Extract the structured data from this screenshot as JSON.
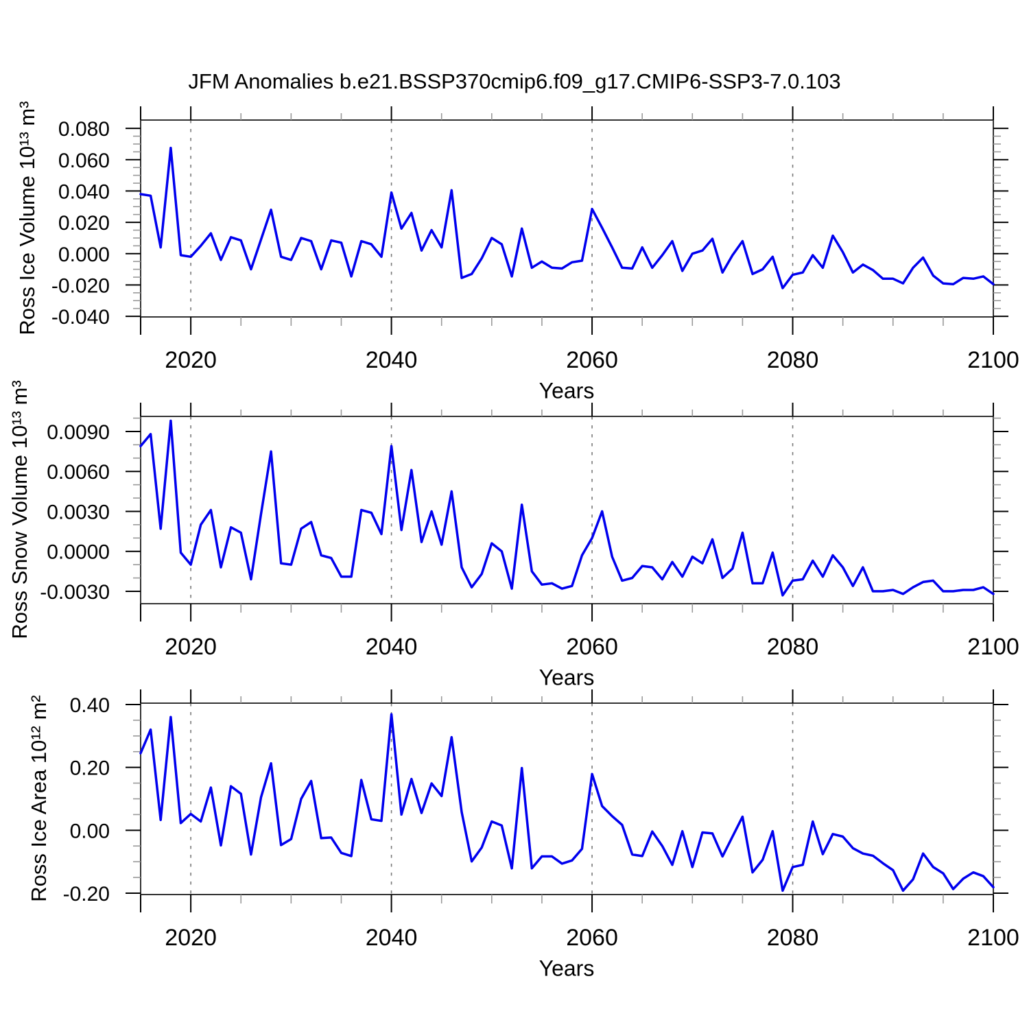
{
  "title": "JFM Anomalies b.e21.BSSP370cmip6.f09_g17.CMIP6-SSP3-7.0.103",
  "colors": {
    "line": "#0000ee",
    "frame": "#333333",
    "major_tick": "#000000",
    "minor_tick": "#999999",
    "gridline": "#777777",
    "text": "#000000",
    "background": "#ffffff"
  },
  "x_axis": {
    "label": "Years",
    "min": 2015,
    "max": 2100,
    "major_ticks": [
      2015,
      2020,
      2040,
      2060,
      2080,
      2100
    ],
    "major_tick_labels": [
      "",
      "2020",
      "2040",
      "2060",
      "2080",
      "2100"
    ],
    "minor_step": 5,
    "gridlines": [
      2020,
      2040,
      2060,
      2080,
      2100
    ]
  },
  "chart_data": [
    {
      "type": "line",
      "ylabel": "Ross Ice Volume 10¹³ m³",
      "ylim": [
        -0.0404,
        0.0853
      ],
      "ytick_values": [
        0.08,
        0.06,
        0.04,
        0.02,
        0.0,
        -0.02,
        -0.04
      ],
      "ytick_labels": [
        "0.080",
        "0.060",
        "0.040",
        "0.020",
        "0.000",
        "-0.020",
        "-0.040"
      ],
      "y_major_step": 0.02,
      "y_minor_step": 0.005,
      "x_start": 2015,
      "x_step": 1,
      "values": [
        0.038,
        0.037,
        0.004,
        0.0675,
        -0.001,
        -0.002,
        0.005,
        0.013,
        -0.004,
        0.0105,
        0.0085,
        -0.01,
        0.009,
        0.028,
        -0.002,
        -0.004,
        0.01,
        0.008,
        -0.01,
        0.0085,
        0.007,
        -0.0145,
        0.008,
        0.006,
        -0.002,
        0.039,
        0.016,
        0.026,
        0.002,
        0.015,
        0.004,
        0.0405,
        -0.0155,
        -0.013,
        -0.003,
        0.01,
        0.006,
        -0.0145,
        0.016,
        -0.009,
        -0.005,
        -0.009,
        -0.0095,
        -0.0055,
        -0.0045,
        0.0285,
        0.0165,
        0.004,
        -0.009,
        -0.0095,
        0.004,
        -0.009,
        -0.001,
        0.008,
        -0.011,
        0.0,
        0.002,
        0.0095,
        -0.012,
        -0.001,
        0.008,
        -0.013,
        -0.01,
        -0.002,
        -0.022,
        -0.0135,
        -0.012,
        -0.001,
        -0.009,
        0.0115,
        0.001,
        -0.012,
        -0.007,
        -0.0105,
        -0.016,
        -0.016,
        -0.019,
        -0.009,
        -0.0025,
        -0.014,
        -0.019,
        -0.0195,
        -0.0155,
        -0.016,
        -0.0145,
        -0.0195
      ]
    },
    {
      "type": "line",
      "ylabel": "Ross Snow Volume 10¹³ m³",
      "ylim": [
        -0.00393,
        0.01013
      ],
      "ytick_values": [
        0.009,
        0.006,
        0.003,
        0.0,
        -0.003
      ],
      "ytick_labels": [
        "0.0090",
        "0.0060",
        "0.0030",
        "0.0000",
        "-0.0030"
      ],
      "y_major_step": 0.003,
      "y_minor_step": 0.001,
      "x_start": 2015,
      "x_step": 1,
      "values": [
        0.0079,
        0.0088,
        0.0017,
        0.0098,
        -0.0001,
        -0.001,
        0.002,
        0.0031,
        -0.0012,
        0.0018,
        0.0014,
        -0.0021,
        0.0028,
        0.0075,
        -0.0009,
        -0.001,
        0.0017,
        0.0022,
        -0.0003,
        -0.0005,
        -0.0019,
        -0.0019,
        0.0031,
        0.0029,
        0.0013,
        0.0079,
        0.0016,
        0.0061,
        0.0007,
        0.003,
        0.0005,
        0.0045,
        -0.0012,
        -0.0027,
        -0.0017,
        0.0006,
        0.0,
        -0.0028,
        0.0035,
        -0.0015,
        -0.0025,
        -0.0024,
        -0.0028,
        -0.0026,
        -0.0003,
        0.001,
        0.003,
        -0.0004,
        -0.0022,
        -0.002,
        -0.0011,
        -0.0012,
        -0.0021,
        -0.0008,
        -0.0019,
        -0.0004,
        -0.0009,
        0.0009,
        -0.002,
        -0.0013,
        0.0014,
        -0.0024,
        -0.0024,
        -0.0001,
        -0.0033,
        -0.0022,
        -0.0021,
        -0.0007,
        -0.0019,
        -0.0003,
        -0.0012,
        -0.0026,
        -0.0012,
        -0.003,
        -0.003,
        -0.0029,
        -0.0032,
        -0.0027,
        -0.0023,
        -0.0022,
        -0.003,
        -0.003,
        -0.0029,
        -0.0029,
        -0.0027,
        -0.0032
      ]
    },
    {
      "type": "line",
      "ylabel": "Ross Ice Area 10¹² m²",
      "ylim": [
        -0.2044,
        0.4043
      ],
      "ytick_values": [
        0.4,
        0.2,
        0.0,
        -0.2
      ],
      "ytick_labels": [
        "0.40",
        "0.20",
        "0.00",
        "-0.20"
      ],
      "y_major_step": 0.2,
      "y_minor_step": 0.05,
      "x_start": 2015,
      "x_step": 1,
      "values": [
        0.245,
        0.32,
        0.033,
        0.36,
        0.023,
        0.052,
        0.028,
        0.136,
        -0.048,
        0.14,
        0.116,
        -0.077,
        0.105,
        0.213,
        -0.047,
        -0.028,
        0.1,
        0.157,
        -0.025,
        -0.023,
        -0.072,
        -0.082,
        0.16,
        0.035,
        0.03,
        0.369,
        0.05,
        0.163,
        0.055,
        0.149,
        0.109,
        0.296,
        0.058,
        -0.099,
        -0.055,
        0.028,
        0.015,
        -0.121,
        0.198,
        -0.121,
        -0.083,
        -0.083,
        -0.106,
        -0.096,
        -0.059,
        0.179,
        0.077,
        0.045,
        0.017,
        -0.077,
        -0.082,
        -0.004,
        -0.05,
        -0.11,
        -0.003,
        -0.117,
        -0.007,
        -0.01,
        -0.083,
        -0.02,
        0.043,
        -0.134,
        -0.094,
        -0.003,
        -0.192,
        -0.117,
        -0.11,
        0.028,
        -0.076,
        -0.012,
        -0.02,
        -0.057,
        -0.074,
        -0.081,
        -0.105,
        -0.127,
        -0.192,
        -0.156,
        -0.074,
        -0.117,
        -0.137,
        -0.187,
        -0.154,
        -0.134,
        -0.146,
        -0.181
      ]
    }
  ]
}
